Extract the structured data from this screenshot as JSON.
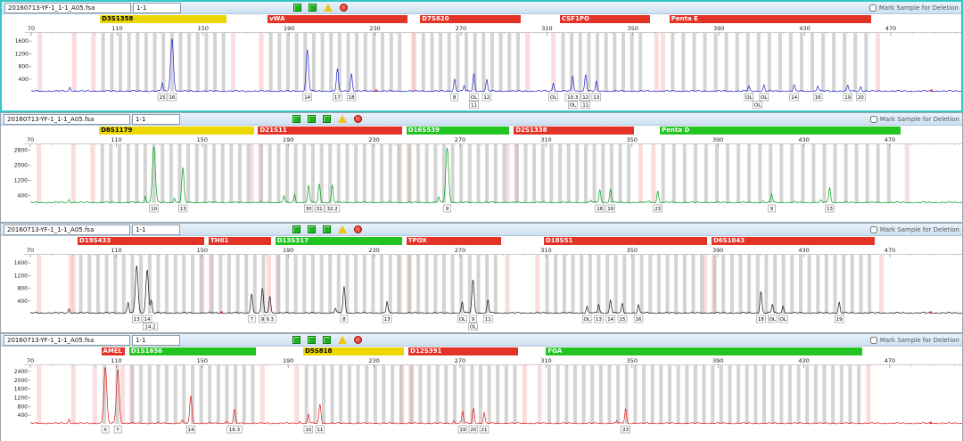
{
  "deletion_label": "Mark Sample for Deletion",
  "x_ticks": [
    70,
    110,
    150,
    190,
    230,
    270,
    310,
    350,
    390,
    430,
    470
  ],
  "pink_extra": [
    74,
    90
  ],
  "panels": [
    {
      "file": "20160713-YF-1_1-1_A05.fsa",
      "sample": "1-1",
      "icons": [
        "chart",
        "chart",
        "warn",
        "stop"
      ],
      "trace_color": "#2222cc",
      "y_max": 1800,
      "y_ticks": [
        1600,
        1200,
        800,
        400
      ],
      "loci": [
        {
          "name": "D3S1358",
          "color": "#ecd800",
          "tc": "#000000",
          "start": 102,
          "end": 161,
          "rpt": 4
        },
        {
          "name": "vWA",
          "color": "#e33226",
          "tc": "#ffffff",
          "start": 180,
          "end": 245,
          "rpt": 4
        },
        {
          "name": "D7S820",
          "color": "#e33226",
          "tc": "#ffffff",
          "start": 251,
          "end": 298,
          "rpt": 4
        },
        {
          "name": "CSF1PO",
          "color": "#e33226",
          "tc": "#ffffff",
          "start": 316,
          "end": 358,
          "rpt": 4
        },
        {
          "name": "Penta E",
          "color": "#e33226",
          "tc": "#ffffff",
          "start": 367,
          "end": 461,
          "rpt": 5
        }
      ],
      "peaks": [
        [
          88,
          120
        ],
        [
          131,
          260
        ],
        [
          135.5,
          1650
        ],
        [
          198.5,
          1290
        ],
        [
          212.5,
          700
        ],
        [
          219,
          560
        ],
        [
          267,
          380
        ],
        [
          271.5,
          180
        ],
        [
          276,
          560
        ],
        [
          282,
          360
        ],
        [
          313,
          260
        ],
        [
          322,
          480
        ],
        [
          328,
          540
        ],
        [
          333,
          300
        ],
        [
          404,
          160
        ],
        [
          411,
          190
        ],
        [
          425,
          200
        ],
        [
          436,
          180
        ],
        [
          450,
          170
        ],
        [
          456,
          150
        ]
      ],
      "alleles": [
        [
          131,
          "15",
          0
        ],
        [
          135.5,
          "16",
          0
        ],
        [
          198.5,
          "14",
          0
        ],
        [
          212.5,
          "17",
          0
        ],
        [
          219,
          "18",
          0
        ],
        [
          267,
          "8",
          0
        ],
        [
          276,
          "OL",
          0
        ],
        [
          282,
          "12",
          0
        ],
        [
          276,
          "11",
          1
        ],
        [
          313,
          "OL",
          0
        ],
        [
          322,
          "10.3",
          0
        ],
        [
          328,
          "12",
          0
        ],
        [
          333,
          "13",
          0
        ],
        [
          322,
          "OL",
          1
        ],
        [
          328,
          "11",
          1
        ],
        [
          404,
          "OL",
          0
        ],
        [
          411,
          "OL",
          0
        ],
        [
          425,
          "14",
          0
        ],
        [
          436,
          "16",
          0
        ],
        [
          450,
          "19",
          0
        ],
        [
          456,
          "20",
          0
        ],
        [
          408,
          "OL",
          1
        ]
      ],
      "artifacts": [
        230.5,
        489
      ]
    },
    {
      "file": "20160713-YF-1_1-1_A05.fsa",
      "sample": "1-1",
      "icons": [
        "chart",
        "chart",
        "chart",
        "warn",
        "stop"
      ],
      "trace_color": "#00a01e",
      "y_max": 3000,
      "y_ticks": [
        2800,
        2000,
        1200,
        400
      ],
      "loci": [
        {
          "name": "D8S1179",
          "color": "#ecd800",
          "tc": "#000000",
          "start": 102,
          "end": 174,
          "rpt": 4
        },
        {
          "name": "D21S11",
          "color": "#e33226",
          "tc": "#ffffff",
          "start": 176,
          "end": 243,
          "rpt": 4
        },
        {
          "name": "D16S539",
          "color": "#21c421",
          "tc": "#ffffff",
          "start": 245,
          "end": 293,
          "rpt": 4
        },
        {
          "name": "D2S1338",
          "color": "#e33226",
          "tc": "#ffffff",
          "start": 295,
          "end": 351,
          "rpt": 4
        },
        {
          "name": "Penta D",
          "color": "#21c421",
          "tc": "#ffffff",
          "start": 363,
          "end": 475,
          "rpt": 5
        }
      ],
      "peaks": [
        [
          88,
          150
        ],
        [
          123.5,
          300
        ],
        [
          127.5,
          2950
        ],
        [
          137,
          260
        ],
        [
          141,
          1800
        ],
        [
          188,
          380
        ],
        [
          193,
          430
        ],
        [
          199.5,
          900
        ],
        [
          204.5,
          980
        ],
        [
          210.5,
          900
        ],
        [
          260,
          300
        ],
        [
          264,
          2880
        ],
        [
          331,
          120
        ],
        [
          335,
          680
        ],
        [
          340,
          740
        ],
        [
          358,
          100
        ],
        [
          362,
          640
        ],
        [
          411,
          80
        ],
        [
          415,
          480
        ],
        [
          438,
          110
        ],
        [
          442,
          820
        ]
      ],
      "alleles": [
        [
          127.5,
          "10",
          0
        ],
        [
          141,
          "13",
          0
        ],
        [
          199.5,
          "30",
          0
        ],
        [
          204.5,
          "31",
          0
        ],
        [
          210.5,
          "32.2",
          0
        ],
        [
          264,
          "9",
          0
        ],
        [
          335,
          "18",
          0
        ],
        [
          340,
          "19",
          0
        ],
        [
          362,
          "23",
          0
        ],
        [
          415,
          "9",
          0
        ],
        [
          442,
          "13",
          0
        ]
      ],
      "artifacts": []
    },
    {
      "file": "20160713-YF-1_1-1_A05.fsa",
      "sample": "1-1",
      "icons": [
        "chart",
        "chart",
        "chart",
        "warn",
        "stop"
      ],
      "trace_color": "#151515",
      "y_max": 1800,
      "y_ticks": [
        1600,
        1200,
        800,
        400
      ],
      "loci": [
        {
          "name": "D19S433",
          "color": "#e33226",
          "tc": "#ffffff",
          "start": 92,
          "end": 151,
          "rpt": 4
        },
        {
          "name": "TH01",
          "color": "#e33226",
          "tc": "#ffffff",
          "start": 153,
          "end": 182,
          "rpt": 4
        },
        {
          "name": "D13S317",
          "color": "#21c421",
          "tc": "#ffffff",
          "start": 184,
          "end": 243,
          "rpt": 4
        },
        {
          "name": "TPOX",
          "color": "#e33226",
          "tc": "#ffffff",
          "start": 245,
          "end": 289,
          "rpt": 4
        },
        {
          "name": "D18S51",
          "color": "#e33226",
          "tc": "#ffffff",
          "start": 309,
          "end": 385,
          "rpt": 4
        },
        {
          "name": "D6S1043",
          "color": "#e33226",
          "tc": "#ffffff",
          "start": 387,
          "end": 463,
          "rpt": 4
        }
      ],
      "peaks": [
        [
          88,
          130
        ],
        [
          115.5,
          340
        ],
        [
          119.5,
          1500
        ],
        [
          124.4,
          1380
        ],
        [
          126.3,
          400
        ],
        [
          173,
          620
        ],
        [
          178,
          780
        ],
        [
          181.5,
          540
        ],
        [
          212,
          150
        ],
        [
          216,
          820
        ],
        [
          236,
          360
        ],
        [
          271,
          350
        ],
        [
          276,
          1040
        ],
        [
          283,
          420
        ],
        [
          329,
          220
        ],
        [
          334.5,
          280
        ],
        [
          340,
          430
        ],
        [
          345.5,
          300
        ],
        [
          353,
          260
        ],
        [
          410,
          680
        ],
        [
          415.3,
          280
        ],
        [
          420.3,
          220
        ],
        [
          446.4,
          330
        ]
      ],
      "alleles": [
        [
          119.5,
          "13",
          0
        ],
        [
          124.4,
          "14",
          0
        ],
        [
          125.8,
          "14.2",
          1
        ],
        [
          173,
          "7",
          0
        ],
        [
          178,
          "9",
          0
        ],
        [
          181.5,
          "9.3",
          0
        ],
        [
          216,
          "8",
          0
        ],
        [
          236,
          "13",
          0
        ],
        [
          271,
          "OL",
          0
        ],
        [
          276,
          "9",
          0
        ],
        [
          283,
          "11",
          0
        ],
        [
          276,
          "OL",
          1
        ],
        [
          329,
          "OL",
          0
        ],
        [
          334.5,
          "13",
          0
        ],
        [
          340,
          "14",
          0
        ],
        [
          345.5,
          "15",
          0
        ],
        [
          353,
          "16",
          0
        ],
        [
          410,
          "18",
          0
        ],
        [
          415.3,
          "OL",
          0
        ],
        [
          420.3,
          "OL",
          0
        ],
        [
          446.4,
          "19",
          0
        ]
      ],
      "artifacts": [
        159,
        489
      ]
    },
    {
      "file": "20160713-YF-1_1-1_A05.fsa",
      "sample": "1-1",
      "icons": [
        "chart",
        "chart",
        "chart",
        "warn",
        "stop"
      ],
      "trace_color": "#e01414",
      "y_max": 2600,
      "y_ticks": [
        2400,
        2000,
        1600,
        1200,
        800,
        400
      ],
      "loci": [
        {
          "name": "AMEL",
          "color": "#e33226",
          "tc": "#ffffff",
          "start": 103,
          "end": 114,
          "rpt": 6
        },
        {
          "name": "D1S1656",
          "color": "#21c421",
          "tc": "#ffffff",
          "start": 116,
          "end": 175,
          "rpt": 4
        },
        {
          "name": "D5S818",
          "color": "#ecd800",
          "tc": "#000000",
          "start": 197,
          "end": 244,
          "rpt": 4
        },
        {
          "name": "D12S391",
          "color": "#e33226",
          "tc": "#ffffff",
          "start": 246,
          "end": 297,
          "rpt": 4
        },
        {
          "name": "FGA",
          "color": "#21c421",
          "tc": "#ffffff",
          "start": 310,
          "end": 457,
          "rpt": 4
        }
      ],
      "peaks": [
        [
          88,
          200
        ],
        [
          104.9,
          2550
        ],
        [
          110.7,
          2480
        ],
        [
          140.7,
          160
        ],
        [
          144.7,
          1250
        ],
        [
          161,
          120
        ],
        [
          165,
          640
        ],
        [
          195.4,
          90
        ],
        [
          199.4,
          430
        ],
        [
          204.8,
          880
        ],
        [
          267.2,
          120
        ],
        [
          271.2,
          540
        ],
        [
          276.2,
          700
        ],
        [
          281.2,
          500
        ],
        [
          343,
          130
        ],
        [
          347,
          680
        ]
      ],
      "alleles": [
        [
          104.9,
          "X",
          0
        ],
        [
          110.7,
          "Y",
          0
        ],
        [
          144.7,
          "14",
          0
        ],
        [
          165,
          "16.3",
          0
        ],
        [
          199.4,
          "10",
          0
        ],
        [
          204.8,
          "11",
          0
        ],
        [
          271.2,
          "19",
          0
        ],
        [
          276.2,
          "20",
          0
        ],
        [
          281.2,
          "21",
          0
        ],
        [
          347,
          "23",
          0
        ]
      ],
      "artifacts": [
        489
      ]
    }
  ]
}
